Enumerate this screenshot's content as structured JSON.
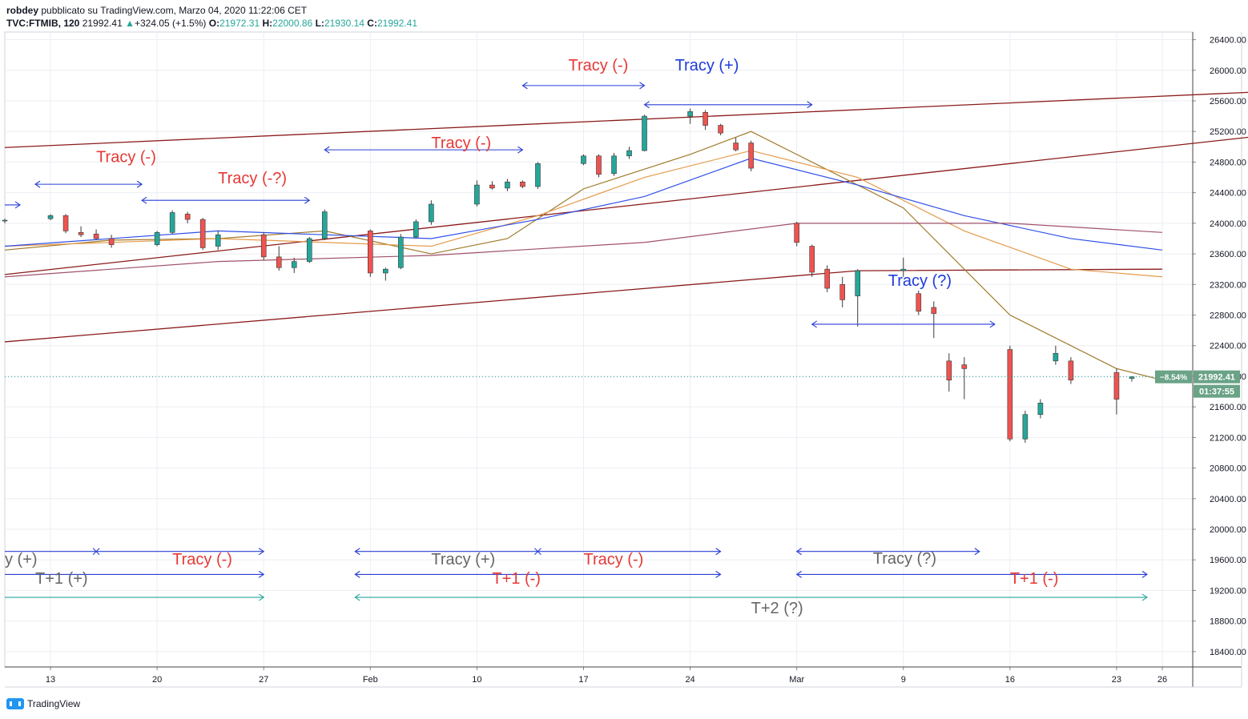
{
  "header": {
    "line1_author": "robdey",
    "line1_rest": "pubblicato su TradingView.com, Marzo 04, 2020 11:22:06 CET",
    "symbol": "TVC:FTMIB, 120",
    "last": "21992.41",
    "change": "+324.05 (+1.5%)",
    "o_label": "O:",
    "o_value": "21972.31",
    "h_label": "H:",
    "h_value": "22000.86",
    "l_label": "L:",
    "l_value": "21930.14",
    "c_label": "C:",
    "c_value": "21992.41"
  },
  "footer": {
    "brand": "TradingView"
  },
  "colors": {
    "up": "#26a69a",
    "down": "#ef5350",
    "candle_border": "#3a3a3a",
    "red_text": "#e53935",
    "blue_text": "#1e3bdc",
    "gray_text": "#666666",
    "arrow_blue": "#2a3fd6",
    "arrow_green": "#26a69a",
    "trend": "#8b1a1a",
    "ma_blue": "#3050e8",
    "ma_orange": "#e49a4a",
    "ma_brown": "#a07a2a",
    "ma_maroon": "#a0526a",
    "price_tag": "#6aa386"
  },
  "chart_data": {
    "type": "candlestick",
    "title": "",
    "y_axis": {
      "ticks": [
        26400,
        26000,
        25600,
        25200,
        24800,
        24400,
        24000,
        23600,
        23200,
        22800,
        22400,
        22000,
        21600,
        21200,
        20800,
        20400,
        20000,
        19600,
        19200,
        18800,
        18400
      ],
      "tick_labels": [
        "26400.00",
        "26000.00",
        "25600.00",
        "25200.00",
        "24800.00",
        "24400.00",
        "24000.00",
        "23600.00",
        "23200.00",
        "22800.00",
        "22400.00",
        "22000.00",
        "21600.00",
        "21200.00",
        "20800.00",
        "20400.00",
        "20000.00",
        "19600.00",
        "19200.00",
        "18800.00",
        "18400.00"
      ],
      "range": [
        18200,
        26500
      ]
    },
    "x_axis": {
      "tick_labels": [
        "13",
        "20",
        "27",
        "Feb",
        "10",
        "17",
        "24",
        "Mar",
        "9",
        "16",
        "23",
        "26"
      ],
      "tick_dates": [
        "2020-01-13",
        "2020-01-20",
        "2020-01-27",
        "2020-02-03",
        "2020-02-10",
        "2020-02-17",
        "2020-02-24",
        "2020-03-02",
        "2020-03-09",
        "2020-03-16",
        "2020-03-23",
        "2020-03-26"
      ],
      "range": [
        "2020-01-10",
        "2020-03-28"
      ]
    },
    "last_price": {
      "value": 21992.41,
      "label": "21992.41",
      "pct_label": "−8.54%",
      "countdown": "01:37:55"
    },
    "candles": [
      {
        "d": "2020-01-10",
        "o": 24030,
        "h": 24060,
        "l": 24000,
        "c": 24040
      },
      {
        "d": "2020-01-13",
        "o": 24060,
        "h": 24120,
        "l": 24040,
        "c": 24100
      },
      {
        "d": "2020-01-14",
        "o": 24100,
        "h": 24120,
        "l": 23870,
        "c": 23900
      },
      {
        "d": "2020-01-15",
        "o": 23880,
        "h": 23960,
        "l": 23820,
        "c": 23850
      },
      {
        "d": "2020-01-16",
        "o": 23860,
        "h": 23920,
        "l": 23780,
        "c": 23800
      },
      {
        "d": "2020-01-17",
        "o": 23800,
        "h": 23850,
        "l": 23680,
        "c": 23720
      },
      {
        "d": "2020-01-20",
        "o": 23720,
        "h": 23900,
        "l": 23700,
        "c": 23880
      },
      {
        "d": "2020-01-21",
        "o": 23880,
        "h": 24170,
        "l": 23860,
        "c": 24140
      },
      {
        "d": "2020-01-22",
        "o": 24120,
        "h": 24150,
        "l": 24000,
        "c": 24050
      },
      {
        "d": "2020-01-23",
        "o": 24050,
        "h": 24070,
        "l": 23650,
        "c": 23680
      },
      {
        "d": "2020-01-24",
        "o": 23700,
        "h": 23900,
        "l": 23650,
        "c": 23850
      },
      {
        "d": "2020-01-27",
        "o": 23850,
        "h": 23880,
        "l": 23520,
        "c": 23560
      },
      {
        "d": "2020-01-28",
        "o": 23560,
        "h": 23700,
        "l": 23380,
        "c": 23420
      },
      {
        "d": "2020-01-29",
        "o": 23420,
        "h": 23550,
        "l": 23350,
        "c": 23500
      },
      {
        "d": "2020-01-30",
        "o": 23500,
        "h": 23820,
        "l": 23480,
        "c": 23800
      },
      {
        "d": "2020-01-31",
        "o": 23800,
        "h": 24180,
        "l": 23780,
        "c": 24150
      },
      {
        "d": "2020-02-03",
        "o": 23900,
        "h": 23920,
        "l": 23300,
        "c": 23350
      },
      {
        "d": "2020-02-04",
        "o": 23350,
        "h": 23420,
        "l": 23250,
        "c": 23400
      },
      {
        "d": "2020-02-05",
        "o": 23420,
        "h": 23860,
        "l": 23400,
        "c": 23820
      },
      {
        "d": "2020-02-06",
        "o": 23820,
        "h": 24050,
        "l": 23800,
        "c": 24020
      },
      {
        "d": "2020-02-07",
        "o": 24020,
        "h": 24300,
        "l": 23980,
        "c": 24250
      },
      {
        "d": "2020-02-10",
        "o": 24250,
        "h": 24560,
        "l": 24220,
        "c": 24500
      },
      {
        "d": "2020-02-11",
        "o": 24500,
        "h": 24550,
        "l": 24440,
        "c": 24460
      },
      {
        "d": "2020-02-12",
        "o": 24460,
        "h": 24580,
        "l": 24420,
        "c": 24540
      },
      {
        "d": "2020-02-13",
        "o": 24540,
        "h": 24560,
        "l": 24460,
        "c": 24480
      },
      {
        "d": "2020-02-14",
        "o": 24480,
        "h": 24800,
        "l": 24450,
        "c": 24780
      },
      {
        "d": "2020-02-17",
        "o": 24780,
        "h": 24900,
        "l": 24760,
        "c": 24880
      },
      {
        "d": "2020-02-18",
        "o": 24880,
        "h": 24900,
        "l": 24600,
        "c": 24640
      },
      {
        "d": "2020-02-19",
        "o": 24650,
        "h": 24920,
        "l": 24620,
        "c": 24880
      },
      {
        "d": "2020-02-20",
        "o": 24880,
        "h": 25000,
        "l": 24840,
        "c": 24950
      },
      {
        "d": "2020-02-21",
        "o": 24950,
        "h": 25420,
        "l": 24940,
        "c": 25400
      },
      {
        "d": "2020-02-24",
        "o": 25400,
        "h": 25500,
        "l": 25300,
        "c": 25460
      },
      {
        "d": "2020-02-25",
        "o": 25450,
        "h": 25480,
        "l": 25220,
        "c": 25280
      },
      {
        "d": "2020-02-26",
        "o": 25280,
        "h": 25300,
        "l": 25150,
        "c": 25180
      },
      {
        "d": "2020-02-27",
        "o": 25050,
        "h": 25120,
        "l": 24940,
        "c": 24960
      },
      {
        "d": "2020-02-28",
        "o": 25050,
        "h": 25080,
        "l": 24680,
        "c": 24720
      },
      {
        "d": "2020-03-02",
        "o": 24000,
        "h": 24020,
        "l": 23700,
        "c": 23750
      },
      {
        "d": "2020-03-03",
        "o": 23700,
        "h": 23720,
        "l": 23300,
        "c": 23360
      },
      {
        "d": "2020-03-04",
        "o": 23400,
        "h": 23450,
        "l": 23100,
        "c": 23150
      },
      {
        "d": "2020-03-05",
        "o": 23200,
        "h": 23300,
        "l": 22900,
        "c": 23000
      },
      {
        "d": "2020-03-06",
        "o": 23050,
        "h": 23400,
        "l": 22650,
        "c": 23380
      },
      {
        "d": "2020-03-09",
        "o": 23380,
        "h": 23550,
        "l": 23300,
        "c": 23400
      },
      {
        "d": "2020-03-10",
        "o": 23080,
        "h": 23120,
        "l": 22800,
        "c": 22850
      },
      {
        "d": "2020-03-11",
        "o": 22900,
        "h": 22980,
        "l": 22500,
        "c": 22820
      },
      {
        "d": "2020-03-12",
        "o": 22200,
        "h": 22300,
        "l": 21800,
        "c": 21950
      },
      {
        "d": "2020-03-13",
        "o": 22150,
        "h": 22250,
        "l": 21700,
        "c": 22100
      },
      {
        "d": "2020-03-16",
        "o": 22350,
        "h": 22400,
        "l": 21150,
        "c": 21180
      },
      {
        "d": "2020-03-17",
        "o": 21180,
        "h": 21550,
        "l": 21130,
        "c": 21500
      },
      {
        "d": "2020-03-18",
        "o": 21500,
        "h": 21700,
        "l": 21450,
        "c": 21650
      },
      {
        "d": "2020-03-19",
        "o": 22200,
        "h": 22400,
        "l": 22150,
        "c": 22300
      },
      {
        "d": "2020-03-20",
        "o": 22200,
        "h": 22250,
        "l": 21900,
        "c": 21950
      },
      {
        "d": "2020-03-23",
        "o": 22050,
        "h": 22100,
        "l": 21500,
        "c": 21700
      },
      {
        "d": "2020-03-24",
        "o": 21972.31,
        "h": 22000.86,
        "l": 21930.14,
        "c": 21992.41
      }
    ],
    "moving_averages": [
      {
        "color": "ma_brown",
        "points": [
          [
            "2020-01-10",
            23650
          ],
          [
            "2020-01-17",
            23780
          ],
          [
            "2020-01-24",
            23800
          ],
          [
            "2020-01-31",
            23900
          ],
          [
            "2020-02-07",
            23600
          ],
          [
            "2020-02-12",
            23800
          ],
          [
            "2020-02-17",
            24450
          ],
          [
            "2020-02-24",
            24900
          ],
          [
            "2020-02-28",
            25200
          ],
          [
            "2020-03-02",
            24900
          ],
          [
            "2020-03-09",
            24200
          ],
          [
            "2020-03-16",
            22800
          ],
          [
            "2020-03-23",
            22100
          ],
          [
            "2020-03-26",
            21950
          ]
        ]
      },
      {
        "color": "ma_orange",
        "points": [
          [
            "2020-01-10",
            23700
          ],
          [
            "2020-01-24",
            23800
          ],
          [
            "2020-02-07",
            23700
          ],
          [
            "2020-02-14",
            24100
          ],
          [
            "2020-02-21",
            24600
          ],
          [
            "2020-02-28",
            24950
          ],
          [
            "2020-03-06",
            24600
          ],
          [
            "2020-03-13",
            23900
          ],
          [
            "2020-03-20",
            23400
          ],
          [
            "2020-03-26",
            23300
          ]
        ]
      },
      {
        "color": "ma_blue",
        "points": [
          [
            "2020-01-10",
            23700
          ],
          [
            "2020-01-24",
            23900
          ],
          [
            "2020-02-07",
            23800
          ],
          [
            "2020-02-14",
            24050
          ],
          [
            "2020-02-21",
            24350
          ],
          [
            "2020-02-28",
            24850
          ],
          [
            "2020-03-06",
            24500
          ],
          [
            "2020-03-13",
            24100
          ],
          [
            "2020-03-20",
            23800
          ],
          [
            "2020-03-26",
            23650
          ]
        ]
      },
      {
        "color": "ma_maroon",
        "points": [
          [
            "2020-01-10",
            23300
          ],
          [
            "2020-01-24",
            23500
          ],
          [
            "2020-02-07",
            23580
          ],
          [
            "2020-02-21",
            23750
          ],
          [
            "2020-03-02",
            24000
          ],
          [
            "2020-03-16",
            24000
          ],
          [
            "2020-03-26",
            23880
          ]
        ]
      }
    ],
    "trend_lines": [
      {
        "points": [
          [
            "2020-01-10",
            24990
          ],
          [
            "2020-04-05",
            25750
          ]
        ]
      },
      {
        "points": [
          [
            "2020-01-10",
            23330
          ],
          [
            "2020-04-05",
            25220
          ]
        ]
      },
      {
        "points": [
          [
            "2020-01-10",
            22450
          ],
          [
            "2020-03-06",
            23380
          ],
          [
            "2020-03-26",
            23400
          ]
        ]
      }
    ],
    "annotations": [
      {
        "text": "Tracy (-)",
        "color": "red_text",
        "at": [
          "2020-01-16",
          24800
        ]
      },
      {
        "text": "Tracy (-?)",
        "color": "red_text",
        "at": [
          "2020-01-24",
          24520
        ]
      },
      {
        "text": "Tracy (-)",
        "color": "red_text",
        "at": [
          "2020-02-07",
          24980
        ]
      },
      {
        "text": "Tracy (-)",
        "color": "red_text",
        "at": [
          "2020-02-16",
          26000
        ]
      },
      {
        "text": "Tracy (+)",
        "color": "blue_text",
        "at": [
          "2020-02-23",
          26000
        ]
      },
      {
        "text": "Tracy (?)",
        "color": "blue_text",
        "at": [
          "2020-03-08",
          23180
        ]
      },
      {
        "text": "y (+)",
        "color": "gray_text",
        "at": [
          "2020-01-10",
          19540
        ]
      },
      {
        "text": "Tracy (-)",
        "color": "red_text",
        "at": [
          "2020-01-21",
          19540
        ]
      },
      {
        "text": "T+1 (+)",
        "color": "gray_text",
        "at": [
          "2020-01-12",
          19290
        ]
      },
      {
        "text": "Tracy (+)",
        "color": "gray_text",
        "at": [
          "2020-02-07",
          19540
        ]
      },
      {
        "text": "Tracy (-)",
        "color": "red_text",
        "at": [
          "2020-02-17",
          19540
        ]
      },
      {
        "text": "T+1 (-)",
        "color": "red_text",
        "at": [
          "2020-02-11",
          19290
        ]
      },
      {
        "text": "Tracy (?)",
        "color": "gray_text",
        "at": [
          "2020-03-07",
          19550
        ]
      },
      {
        "text": "T+1 (-)",
        "color": "red_text",
        "at": [
          "2020-03-16",
          19290
        ]
      },
      {
        "text": "T+2 (?)",
        "color": "gray_text",
        "at": [
          "2020-02-28",
          18900
        ]
      }
    ],
    "arrows": [
      {
        "from": [
          "2020-01-10",
          24240
        ],
        "to": [
          "2020-01-11",
          24240
        ],
        "color": "arrow_blue",
        "head": "end"
      },
      {
        "from": [
          "2020-01-12",
          24510
        ],
        "to": [
          "2020-01-19",
          24510
        ],
        "color": "arrow_blue",
        "head": "both"
      },
      {
        "from": [
          "2020-01-19",
          24300
        ],
        "to": [
          "2020-01-30",
          24300
        ],
        "color": "arrow_blue",
        "head": "both"
      },
      {
        "from": [
          "2020-01-31",
          24960
        ],
        "to": [
          "2020-02-13",
          24960
        ],
        "color": "arrow_blue",
        "head": "both"
      },
      {
        "from": [
          "2020-02-13",
          25800
        ],
        "to": [
          "2020-02-21",
          25800
        ],
        "color": "arrow_blue",
        "head": "both"
      },
      {
        "from": [
          "2020-02-21",
          25550
        ],
        "to": [
          "2020-03-03",
          25550
        ],
        "color": "arrow_blue",
        "head": "both"
      },
      {
        "from": [
          "2020-03-03",
          22680
        ],
        "to": [
          "2020-03-15",
          22680
        ],
        "color": "arrow_blue",
        "head": "both"
      },
      {
        "from": [
          "2020-01-10",
          19710
        ],
        "to": [
          "2020-01-27",
          19710
        ],
        "color": "arrow_blue",
        "head": "end"
      },
      {
        "from": [
          "2020-01-10",
          19410
        ],
        "to": [
          "2020-01-27",
          19410
        ],
        "color": "arrow_blue",
        "head": "end"
      },
      {
        "from": [
          "2020-01-10",
          19110
        ],
        "to": [
          "2020-01-27",
          19110
        ],
        "color": "arrow_green",
        "head": "end"
      },
      {
        "from": [
          "2020-02-02",
          19710
        ],
        "to": [
          "2020-02-26",
          19710
        ],
        "color": "arrow_blue",
        "head": "both"
      },
      {
        "from": [
          "2020-02-02",
          19410
        ],
        "to": [
          "2020-02-26",
          19410
        ],
        "color": "arrow_blue",
        "head": "both"
      },
      {
        "from": [
          "2020-02-02",
          19110
        ],
        "to": [
          "2020-03-25",
          19110
        ],
        "color": "arrow_green",
        "head": "both"
      },
      {
        "from": [
          "2020-03-02",
          19710
        ],
        "to": [
          "2020-03-14",
          19710
        ],
        "color": "arrow_blue",
        "head": "both"
      },
      {
        "from": [
          "2020-03-02",
          19410
        ],
        "to": [
          "2020-03-25",
          19410
        ],
        "color": "arrow_blue",
        "head": "both"
      }
    ],
    "crosses": [
      [
        "2020-01-16",
        19710
      ],
      [
        "2020-02-14",
        19710
      ]
    ],
    "grid": true
  }
}
